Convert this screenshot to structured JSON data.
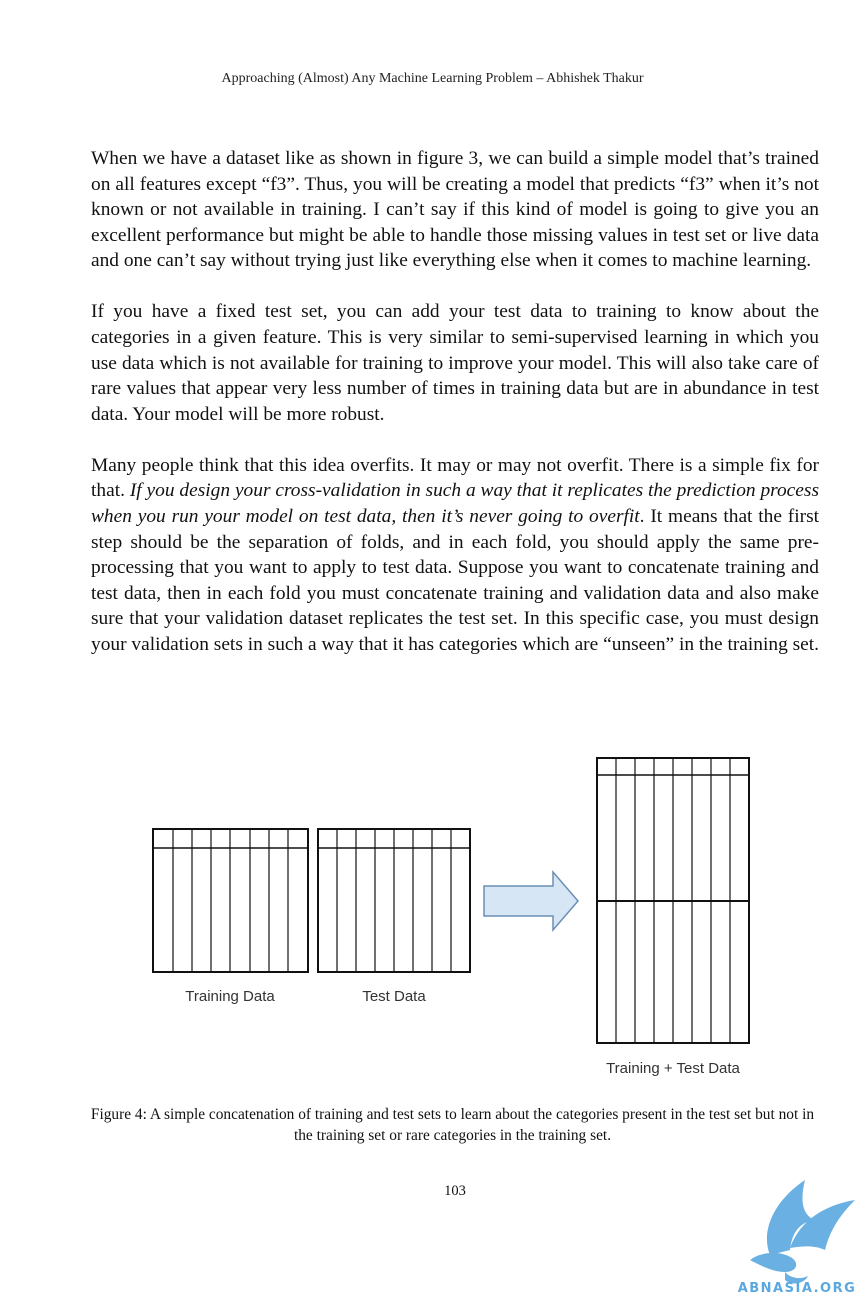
{
  "header": {
    "running_title": "Approaching (Almost) Any Machine Learning Problem – Abhishek Thakur"
  },
  "body": {
    "p1": "When we have a dataset like as shown in figure 3, we can build a simple model that’s trained on all features except “f3”. Thus, you will be creating a model that predicts “f3” when it’s not known or not available in training. I can’t say if this kind of model is going to give you an excellent performance but might be able to handle those missing values in test set or live data and one can’t say without trying just like everything else when it comes to machine learning.",
    "p2": "If you have a fixed test set, you can add your test data to training to know about the categories in a given feature. This is very similar to semi-supervised learning in which you use data which is not available for training to improve your model. This will also take care of rare values that appear very less number of times in training data but are in abundance in test data. Your model will be more robust.",
    "p3_before": "Many people think that this idea overfits. It may or may not overfit. There is a simple fix for that. ",
    "p3_italic": "If you design your cross-validation in such a way that it replicates the prediction process when you run your model on test data, then it’s never going to overfit",
    "p3_after": ". It means that the first step should be the separation of folds, and in each fold, you should apply the same pre-processing that you want to apply to test data. Suppose you want to concatenate training and test data, then in each fold you must concatenate training and validation data and also make sure that your validation dataset replicates the test set. In this specific case, you must design your validation sets in such a way that it has categories which are “unseen” in the training set."
  },
  "figure": {
    "label_training": "Training Data",
    "label_test": "Test Data",
    "label_combined": "Training + Test Data",
    "arrow_fill": "#d6e6f5",
    "arrow_stroke": "#6a8fb5"
  },
  "caption": "Figure 4: A simple concatenation of training and test sets to learn about the categories present in the test set but not in the training set or rare categories in the training set.",
  "page_number": "103",
  "watermark": {
    "text": "ABNASIA.ORG",
    "color": "#5aa8e0"
  }
}
